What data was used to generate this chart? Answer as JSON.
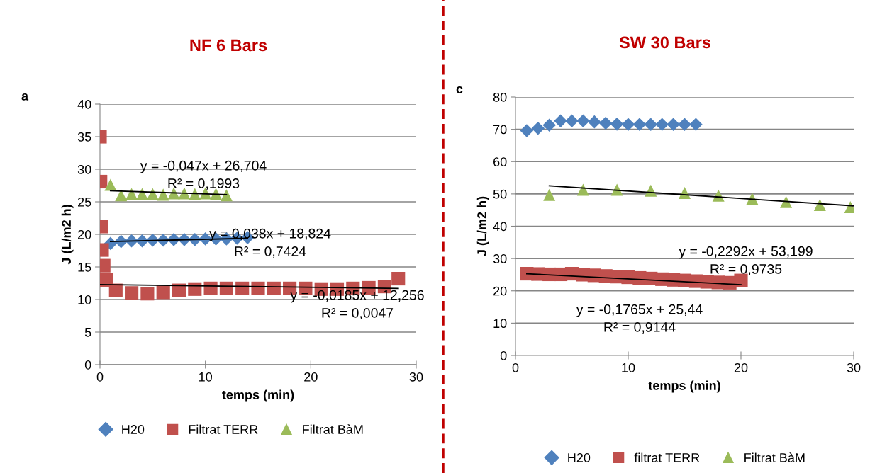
{
  "chart_data": [
    {
      "type": "scatter",
      "title": "NF 6 Bars",
      "xlabel": "temps (min)",
      "ylabel": "J (L/m2 h)",
      "xlim": [
        0,
        30
      ],
      "xticks": [
        0,
        10,
        20,
        30
      ],
      "ylim": [
        0,
        40
      ],
      "yticks": [
        0,
        5,
        10,
        15,
        20,
        25,
        30,
        35,
        40
      ],
      "grid": "y",
      "legend": "bottom",
      "annotations": [
        "a",
        "y = -0,047x + 26,704\nR² = 0,1993",
        "y = 0,038x + 18,824\nR² = 0,7424",
        "y = -0,0185x + 12,256\nR² = 0,0047"
      ],
      "series": [
        {
          "name": "H20",
          "color": "#4f81bd",
          "marker": "diamond",
          "x": [
            1,
            2,
            3,
            4,
            5,
            6,
            7,
            8,
            9,
            10,
            11,
            12,
            13,
            14
          ],
          "values": [
            18.6,
            18.9,
            19.0,
            19.0,
            19.1,
            19.1,
            19.2,
            19.2,
            19.2,
            19.3,
            19.3,
            19.3,
            19.4,
            19.5
          ]
        },
        {
          "name": "Filtrat TERR",
          "color": "#c0504d",
          "marker": "square",
          "x": [
            0,
            0.05,
            0.1,
            0.2,
            0.35,
            0.6,
            1.5,
            3,
            4.5,
            6,
            7.5,
            9,
            10.5,
            12,
            13.5,
            15,
            16.5,
            18,
            19.5,
            21,
            22.5,
            24,
            25.5,
            27,
            28.3
          ],
          "values": [
            35.0,
            28.1,
            21.2,
            17.6,
            15.2,
            13.0,
            11.4,
            11.0,
            10.9,
            11.1,
            11.4,
            11.6,
            11.7,
            11.7,
            11.7,
            11.7,
            11.7,
            11.7,
            11.7,
            11.6,
            11.6,
            11.7,
            11.8,
            12.0,
            13.2
          ]
        },
        {
          "name": "Filtrat BàM",
          "color": "#9bbb59",
          "marker": "triangle",
          "x": [
            1,
            2,
            3,
            4,
            5,
            6,
            7,
            8,
            9,
            10,
            11,
            12
          ],
          "values": [
            27.6,
            26.0,
            26.2,
            26.2,
            26.2,
            26.1,
            26.3,
            26.3,
            26.2,
            26.3,
            26.2,
            26.0
          ]
        },
        {
          "type": "line",
          "color": "#000000",
          "marker": "none",
          "x": [
            1,
            12
          ],
          "values": [
            26.7,
            26.1
          ]
        },
        {
          "type": "line",
          "color": "#000000",
          "marker": "none",
          "x": [
            1,
            14
          ],
          "values": [
            18.9,
            19.4
          ]
        },
        {
          "type": "line",
          "color": "#000000",
          "marker": "none",
          "x": [
            0,
            28.3
          ],
          "values": [
            12.3,
            11.7
          ]
        }
      ]
    },
    {
      "type": "scatter",
      "title": "SW 30 Bars",
      "xlabel": "temps (min)",
      "ylabel": "J (L/m2 h)",
      "xlim": [
        0,
        30
      ],
      "xticks": [
        0,
        10,
        20,
        30
      ],
      "ylim": [
        0,
        80
      ],
      "yticks": [
        0,
        10,
        20,
        30,
        40,
        50,
        60,
        70,
        80
      ],
      "grid": "y",
      "legend": "bottom",
      "annotations": [
        "c",
        "y = -0,2292x + 53,199\nR² = 0,9735",
        "y = -0,1765x + 25,44\nR² = 0,9144"
      ],
      "series": [
        {
          "name": "H20",
          "color": "#4f81bd",
          "marker": "diamond",
          "x": [
            1,
            2,
            3,
            4,
            5,
            6,
            7,
            8,
            9,
            10,
            11,
            12,
            13,
            14,
            15,
            16
          ],
          "values": [
            69.6,
            70.3,
            71.3,
            72.6,
            72.6,
            72.6,
            72.3,
            71.9,
            71.6,
            71.5,
            71.5,
            71.5,
            71.5,
            71.5,
            71.5,
            71.5
          ]
        },
        {
          "name": "filtrat TERR",
          "color": "#c0504d",
          "marker": "square",
          "x": [
            1,
            2,
            3,
            4,
            5,
            6,
            7,
            8,
            9,
            10,
            11,
            12,
            13,
            14,
            15,
            16,
            17,
            18,
            19,
            20
          ],
          "values": [
            25.3,
            25.2,
            25.1,
            25.1,
            25.3,
            25.0,
            24.8,
            24.6,
            24.4,
            24.2,
            24.0,
            23.8,
            23.6,
            23.4,
            23.2,
            23.0,
            22.8,
            22.6,
            22.5,
            23.2
          ]
        },
        {
          "name": "Filtrat BàM",
          "color": "#9bbb59",
          "marker": "triangle",
          "x": [
            3,
            6,
            9,
            12,
            15,
            18,
            21,
            24,
            27,
            29.7
          ],
          "values": [
            49.7,
            51.3,
            51.3,
            51.0,
            50.3,
            49.5,
            48.5,
            47.5,
            46.6,
            45.9
          ]
        },
        {
          "type": "line",
          "color": "#000000",
          "marker": "none",
          "x": [
            3,
            30
          ],
          "values": [
            52.5,
            46.3
          ]
        },
        {
          "type": "line",
          "color": "#000000",
          "marker": "none",
          "x": [
            1,
            20
          ],
          "values": [
            25.3,
            21.9
          ]
        }
      ]
    }
  ]
}
